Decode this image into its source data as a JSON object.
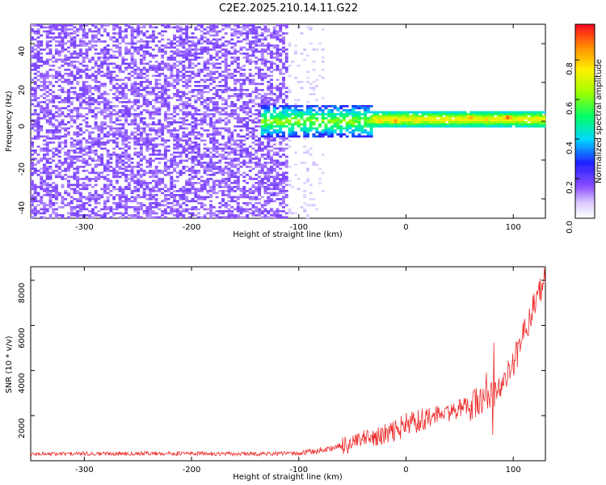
{
  "title": "C2E2.2025.210.14.11.G22",
  "colors": {
    "line": "#ee2b2b",
    "axis": "#000000",
    "spectrogram_hot": "#ff1f1f",
    "spectrogram_low": "#8d4dff"
  },
  "chart_data": [
    {
      "type": "heatmap",
      "title": "C2E2.2025.210.14.11.G22",
      "xlabel": "Height of straight line (km)",
      "ylabel": "Frequency (Hz)",
      "xlim": [
        -350,
        130
      ],
      "ylim": [
        -50,
        50
      ],
      "x_ticks": [
        -300,
        -200,
        -100,
        0,
        100
      ],
      "y_ticks": [
        -40,
        -20,
        0,
        20,
        40
      ],
      "colorbar": {
        "label": "Normalized spectral amplitude",
        "range": [
          0,
          0.98
        ],
        "ticks": [
          0.0,
          0.2,
          0.4,
          0.6,
          0.8
        ]
      },
      "regions": [
        {
          "x_range": [
            -350,
            -110
          ],
          "freq_range": [
            -50,
            50
          ],
          "amplitude": 0.08
        },
        {
          "x_range": [
            -110,
            -75
          ],
          "freq_range": [
            -50,
            50
          ],
          "amplitude": 0.03
        },
        {
          "x_range": [
            -135,
            -30
          ],
          "freq_range": [
            -8,
            8
          ],
          "amplitude": 0.45
        },
        {
          "x_range": [
            -30,
            130
          ],
          "freq_range": [
            -3,
            5
          ],
          "amplitude": 0.7
        }
      ],
      "hotspots": [
        {
          "x": -25,
          "freq": 0,
          "amplitude": 0.85
        },
        {
          "x": -10,
          "freq": 0,
          "amplitude": 0.9
        },
        {
          "x": 10,
          "freq": 0,
          "amplitude": 0.82
        },
        {
          "x": 60,
          "freq": 2,
          "amplitude": 0.88
        },
        {
          "x": 75,
          "freq": 1,
          "amplitude": 0.84
        },
        {
          "x": 95,
          "freq": 2,
          "amplitude": 0.96
        }
      ]
    },
    {
      "type": "line",
      "xlabel": "Height of straight line (km)",
      "ylabel": "SNR (10 * v/v)",
      "xlim": [
        -350,
        130
      ],
      "ylim": [
        0,
        8600
      ],
      "x_ticks": [
        -300,
        -200,
        -100,
        0,
        100
      ],
      "y_ticks": [
        2000,
        4000,
        6000,
        8000
      ],
      "series": [
        {
          "x": [
            -350,
            -300,
            -250,
            -200,
            -150,
            -100,
            -80,
            -60,
            -40,
            -20,
            0,
            20,
            40,
            60,
            80,
            90,
            100,
            110,
            120,
            130
          ],
          "y": [
            300,
            310,
            330,
            320,
            300,
            330,
            450,
            650,
            900,
            1100,
            1600,
            1900,
            2150,
            2450,
            2900,
            3400,
            4300,
            5600,
            7000,
            8200
          ]
        }
      ]
    }
  ]
}
